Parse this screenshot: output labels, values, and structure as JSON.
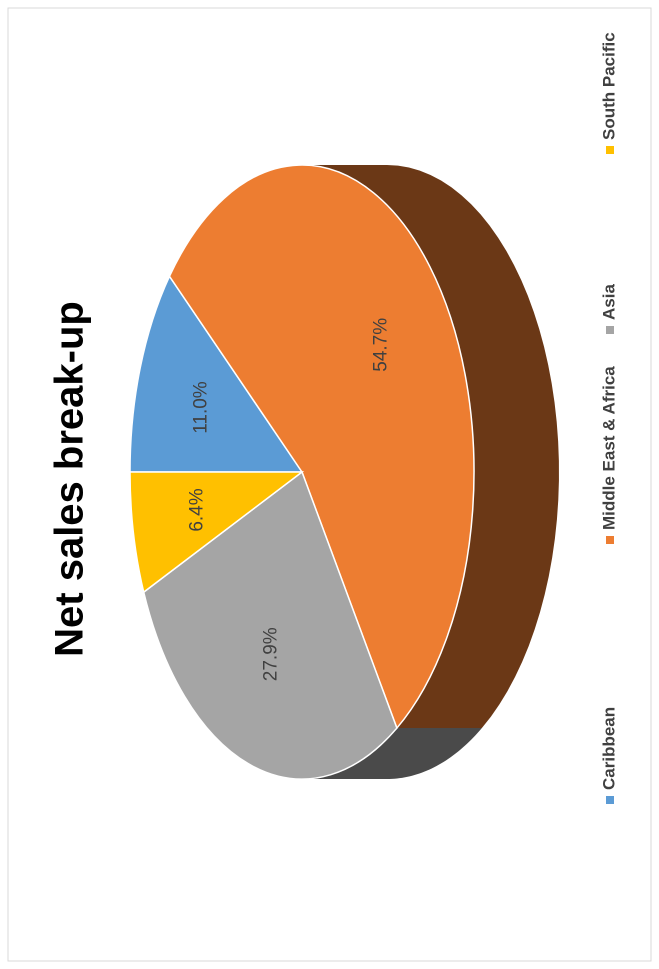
{
  "chart_data": {
    "type": "pie",
    "title": "Net sales break-up",
    "categories": [
      "Caribbean",
      "Middle East & Africa",
      "Asia",
      "South Pacific"
    ],
    "values": [
      11.0,
      54.7,
      27.9,
      6.4
    ],
    "value_labels": [
      "11.0%",
      "54.7%",
      "27.9%",
      "6.4%"
    ],
    "colors": [
      "#5b9bd5",
      "#ed7d31",
      "#a5a5a5",
      "#ffc000"
    ],
    "legend": "bottom"
  }
}
